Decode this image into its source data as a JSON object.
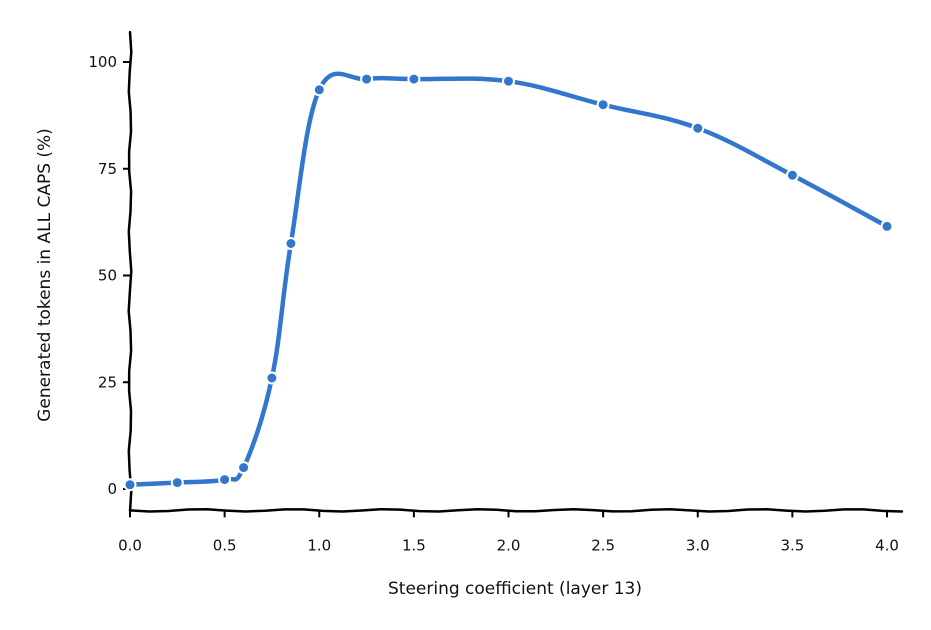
{
  "chart_data": {
    "type": "line",
    "xlabel": "Steering coefficient  (layer 13)",
    "ylabel": "Generated tokens in ALL CAPS (%)",
    "xlim": [
      0,
      4
    ],
    "ylim": [
      -5,
      107
    ],
    "xticks": [
      0.0,
      0.5,
      1.0,
      1.5,
      2.0,
      2.5,
      3.0,
      3.5,
      4.0
    ],
    "xtick_labels": [
      "0.0",
      "0.5",
      "1.0",
      "1.5",
      "2.0",
      "2.5",
      "3.0",
      "3.5",
      "4.0"
    ],
    "yticks": [
      0,
      25,
      50,
      75,
      100
    ],
    "ytick_labels": [
      "0",
      "25",
      "50",
      "75",
      "100"
    ],
    "grid": false,
    "color": "#3377cc",
    "series": [
      {
        "x": [
          0.0,
          0.25,
          0.5,
          0.6,
          0.75,
          0.85,
          1.0,
          1.25,
          1.5,
          2.0,
          2.5,
          3.0,
          3.5,
          4.0
        ],
        "y": [
          1.0,
          1.5,
          2.2,
          5.0,
          26.0,
          57.5,
          93.5,
          96.0,
          96.0,
          95.5,
          90.0,
          84.5,
          73.5,
          61.5
        ]
      }
    ]
  }
}
